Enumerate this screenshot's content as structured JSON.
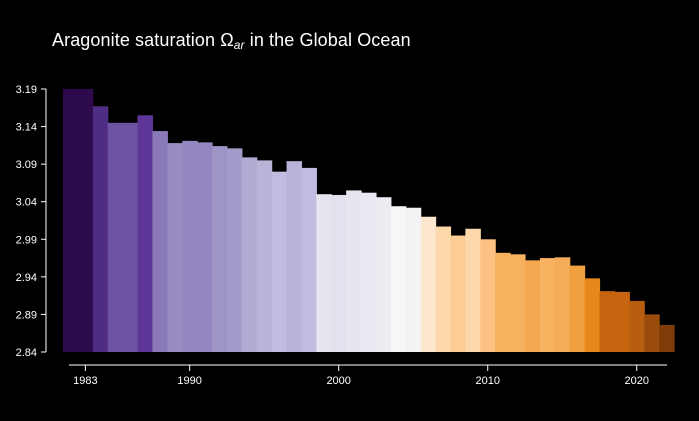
{
  "title": {
    "text": "Aragonite saturation Ω",
    "subscript": "ar",
    "suffix": " in the Global Ocean"
  },
  "chart_data": {
    "type": "bar",
    "title": "Aragonite saturation Ωar in the Global Ocean",
    "xlabel": "",
    "ylabel": "",
    "x": [
      1982,
      1983,
      1984,
      1985,
      1986,
      1987,
      1988,
      1989,
      1990,
      1991,
      1992,
      1993,
      1994,
      1995,
      1996,
      1997,
      1998,
      1999,
      2000,
      2001,
      2002,
      2003,
      2004,
      2005,
      2006,
      2007,
      2008,
      2009,
      2010,
      2011,
      2012,
      2013,
      2014,
      2015,
      2016,
      2017,
      2018,
      2019,
      2020,
      2021,
      2022
    ],
    "values": [
      3.19,
      3.19,
      3.167,
      3.145,
      3.145,
      3.155,
      3.134,
      3.118,
      3.121,
      3.119,
      3.114,
      3.111,
      3.099,
      3.095,
      3.08,
      3.094,
      3.085,
      3.05,
      3.049,
      3.055,
      3.052,
      3.046,
      3.034,
      3.032,
      3.02,
      3.007,
      2.995,
      3.004,
      2.99,
      2.972,
      2.97,
      2.962,
      2.965,
      2.966,
      2.955,
      2.938,
      2.921,
      2.92,
      2.908,
      2.89,
      2.876
    ],
    "colors": [
      "#2d0a4b",
      "#2d0a4b",
      "#4f2d84",
      "#6e52a3",
      "#6e52a3",
      "#5c3596",
      "#8b7ab9",
      "#9a8cc2",
      "#9486c0",
      "#9585bf",
      "#9e94c5",
      "#a49bca",
      "#b2aad3",
      "#bbb4d8",
      "#c2bde0",
      "#b8b3d9",
      "#c0bbe0",
      "#e5e5ef",
      "#e2e2ee",
      "#e6e6f0",
      "#e9e9f1",
      "#ececf3",
      "#f6f6f7",
      "#f3f3f5",
      "#fde8cf",
      "#fdd8ab",
      "#fdcc94",
      "#fdd8ab",
      "#fdc283",
      "#f7b260",
      "#f7b260",
      "#f5a850",
      "#f7b260",
      "#f6ad58",
      "#f0a040",
      "#e8881c",
      "#c76410",
      "#c76410",
      "#b75e10",
      "#9a4c0c",
      "#7f3b08"
    ],
    "ylim": [
      2.84,
      3.19
    ],
    "yticks": [
      "2.84",
      "2.89",
      "2.94",
      "2.99",
      "3.04",
      "3.09",
      "3.14",
      "3.19"
    ],
    "xticks": [
      "1983",
      "1990",
      "2000",
      "2010",
      "2020"
    ],
    "grid": false,
    "legend": "none"
  }
}
